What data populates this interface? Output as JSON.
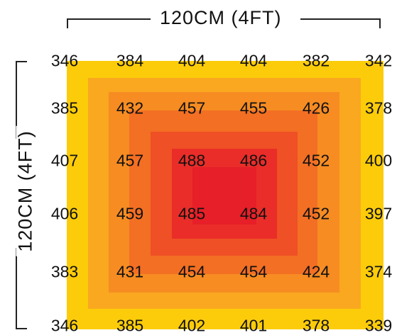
{
  "dimensions": {
    "width_label": "120CM (4FT)",
    "height_label": "120CM (4FT)"
  },
  "grid_values": [
    [
      "346",
      "384",
      "404",
      "404",
      "382",
      "342"
    ],
    [
      "385",
      "432",
      "457",
      "455",
      "426",
      "378"
    ],
    [
      "407",
      "457",
      "488",
      "486",
      "452",
      "400"
    ],
    [
      "406",
      "459",
      "485",
      "484",
      "452",
      "397"
    ],
    [
      "383",
      "431",
      "454",
      "454",
      "424",
      "374"
    ],
    [
      "346",
      "385",
      "402",
      "401",
      "378",
      "339"
    ]
  ],
  "heat_colors": [
    "#fccc0a",
    "#f9a81f",
    "#f68c22",
    "#f36f23",
    "#ef5025",
    "#ea2d29",
    "#e71f28"
  ]
}
